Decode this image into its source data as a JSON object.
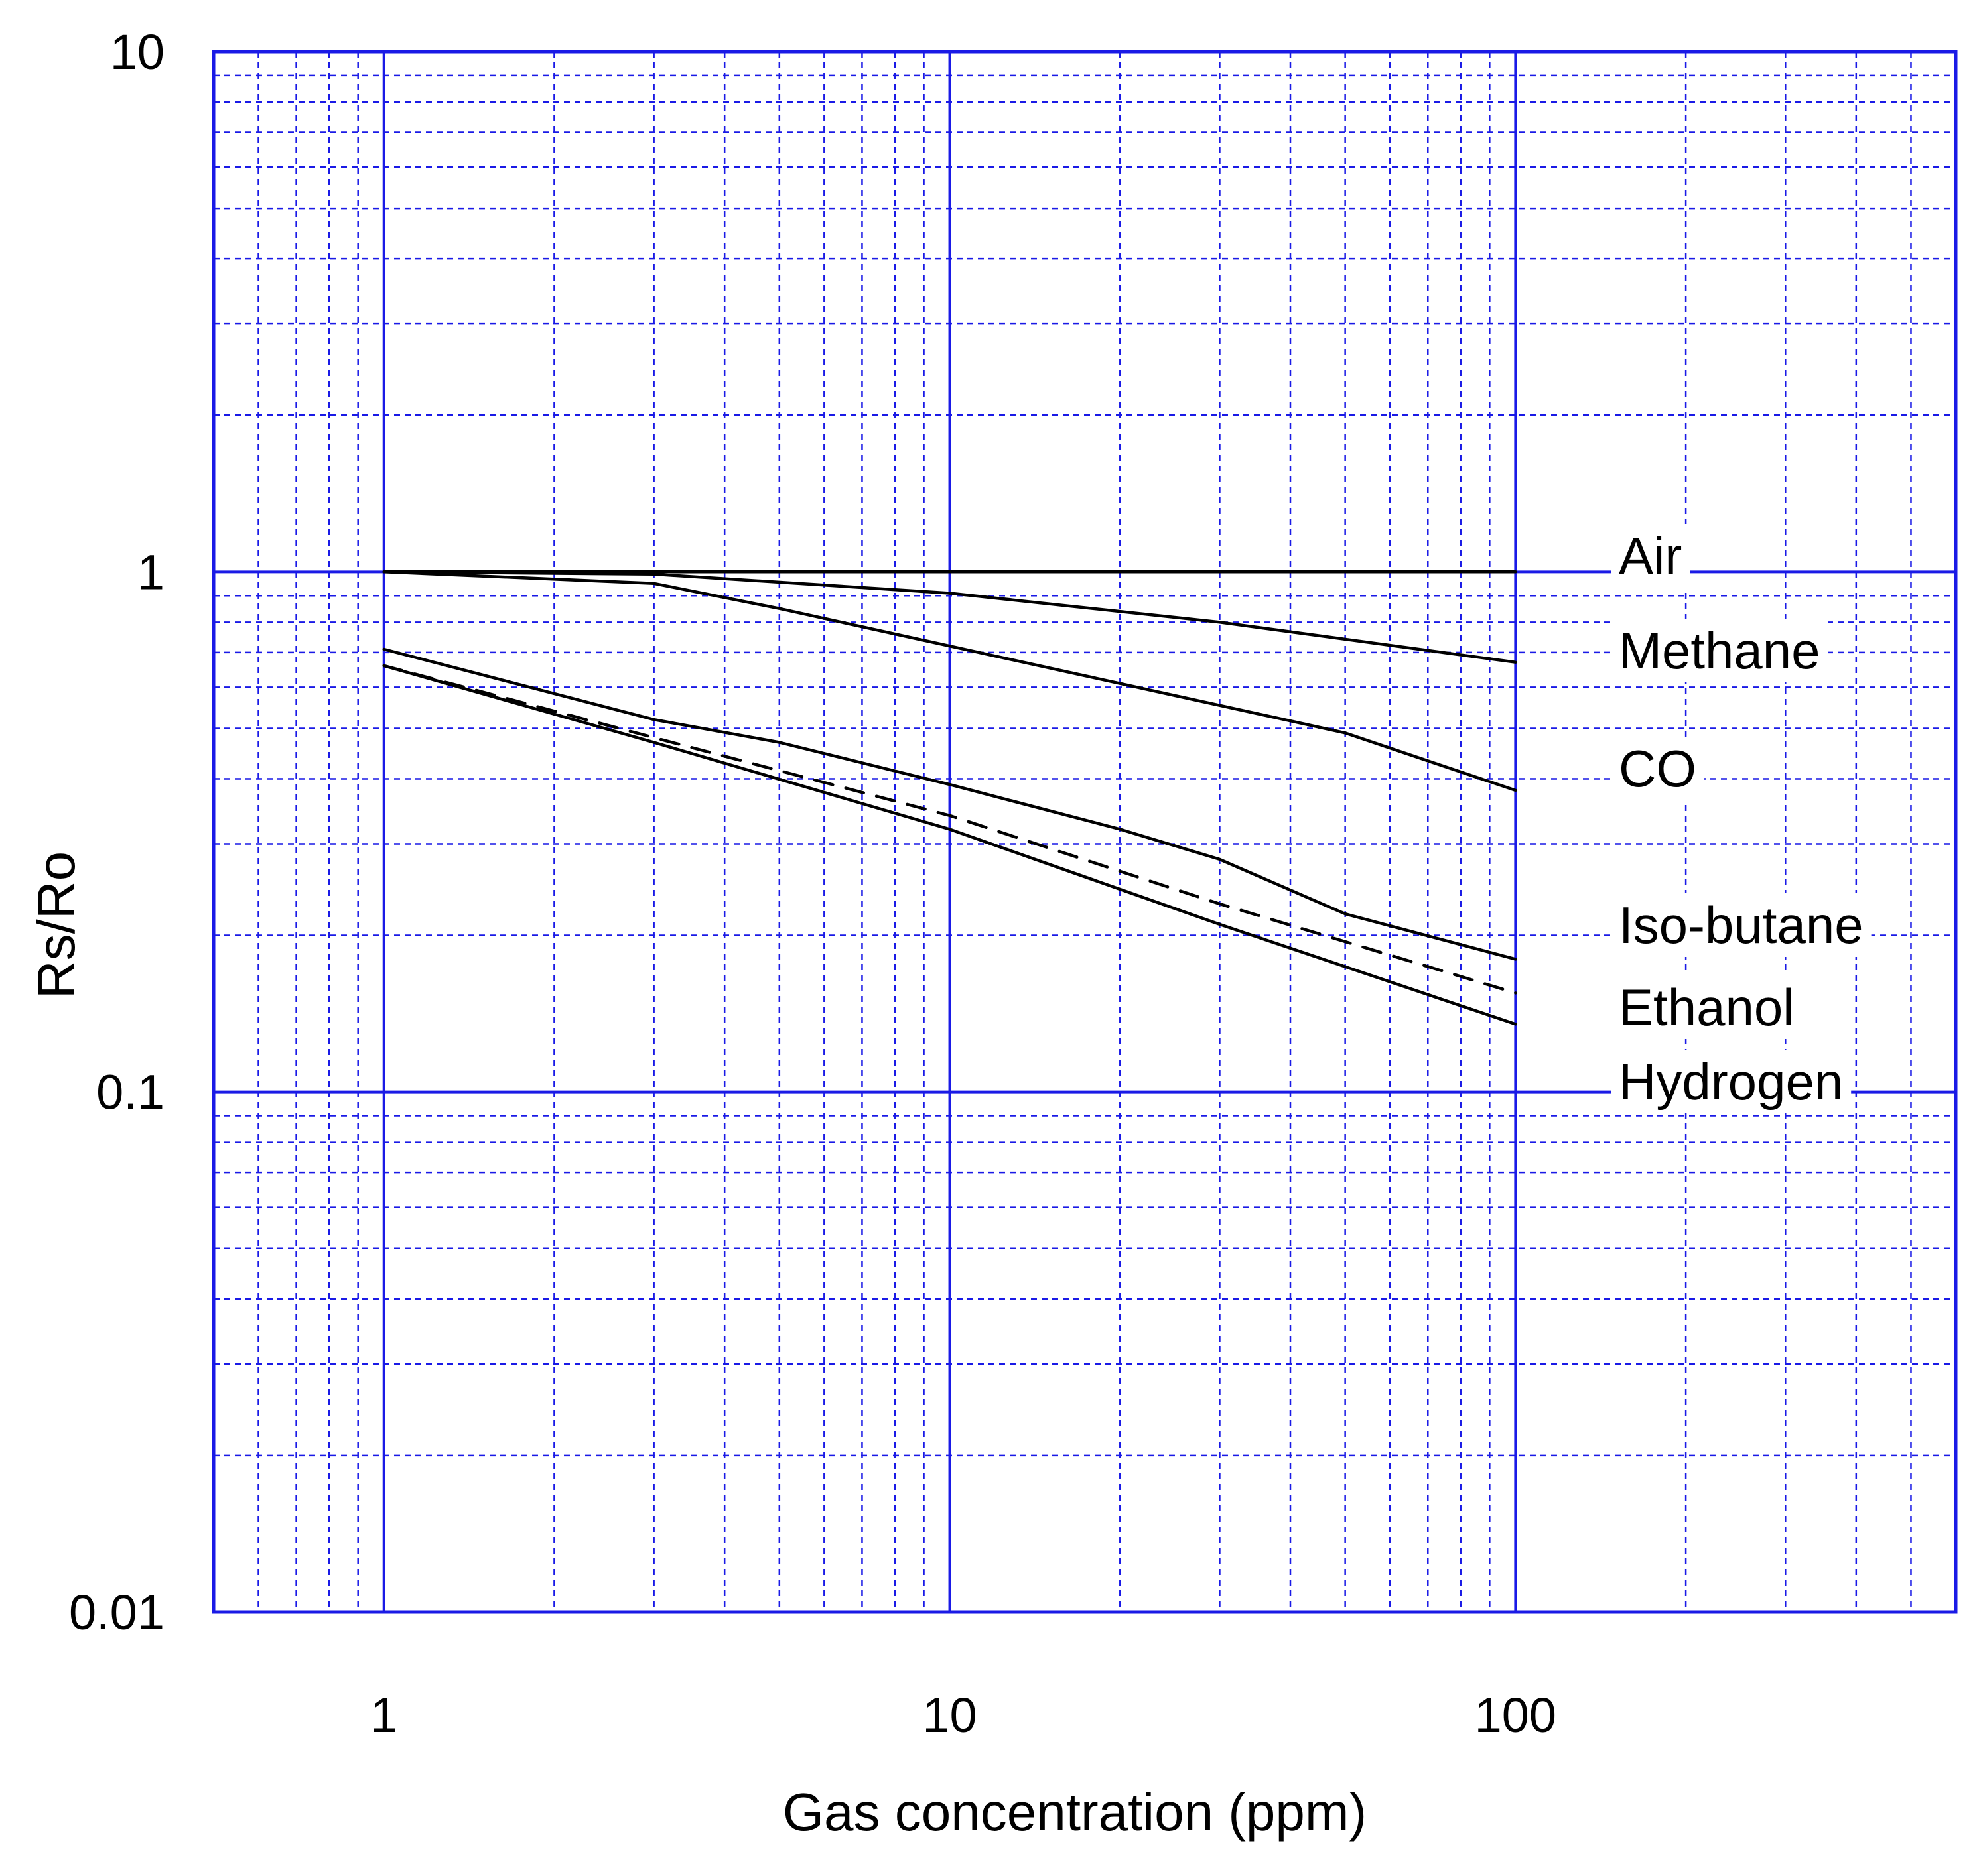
{
  "chart_data": {
    "type": "line",
    "title": "",
    "xlabel": "Gas concentration (ppm)",
    "ylabel": "Rs/Ro",
    "xscale": "log",
    "yscale": "log",
    "xlim": [
      0.5,
      600
    ],
    "ylim": [
      0.01,
      10
    ],
    "x_ticks": [
      1,
      10,
      100
    ],
    "x_tick_labels": [
      "1",
      "10",
      "100"
    ],
    "y_ticks": [
      0.01,
      0.1,
      1,
      10
    ],
    "y_tick_labels": [
      "0.01",
      "0.1",
      "1",
      "10"
    ],
    "grid": true,
    "grid_color": "#1a1ae6",
    "line_color": "#000000",
    "legend": "labels at right end of lines",
    "series": [
      {
        "name": "Air",
        "style": "solid",
        "x": [
          1,
          100
        ],
        "y": [
          1.0,
          1.0
        ]
      },
      {
        "name": "Methane",
        "style": "solid",
        "x": [
          1,
          3,
          10,
          30,
          100
        ],
        "y": [
          1.0,
          0.99,
          0.91,
          0.8,
          0.67
        ]
      },
      {
        "name": "CO",
        "style": "solid",
        "x": [
          1,
          3,
          5,
          10,
          20,
          50,
          100
        ],
        "y": [
          1.0,
          0.95,
          0.85,
          0.72,
          0.61,
          0.49,
          0.38
        ]
      },
      {
        "name": "Iso-butane",
        "style": "solid",
        "x": [
          1,
          3,
          5,
          10,
          20,
          30,
          50,
          100
        ],
        "y": [
          0.71,
          0.52,
          0.47,
          0.39,
          0.32,
          0.28,
          0.22,
          0.18
        ]
      },
      {
        "name": "Ethanol",
        "style": "dashed",
        "x": [
          1,
          3,
          10,
          30,
          100
        ],
        "y": [
          0.66,
          0.48,
          0.34,
          0.23,
          0.155
        ]
      },
      {
        "name": "Hydrogen",
        "style": "solid",
        "x": [
          1,
          3,
          10,
          30,
          100
        ],
        "y": [
          0.66,
          0.47,
          0.32,
          0.21,
          0.135
        ]
      }
    ]
  }
}
